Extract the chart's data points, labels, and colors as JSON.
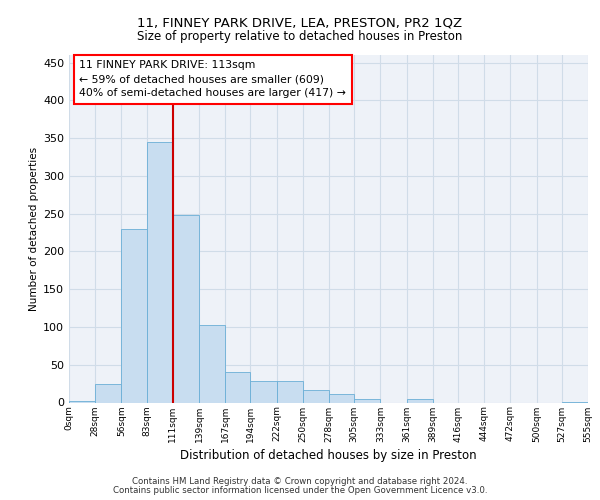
{
  "title1": "11, FINNEY PARK DRIVE, LEA, PRESTON, PR2 1QZ",
  "title2": "Size of property relative to detached houses in Preston",
  "xlabel": "Distribution of detached houses by size in Preston",
  "ylabel": "Number of detached properties",
  "footer1": "Contains HM Land Registry data © Crown copyright and database right 2024.",
  "footer2": "Contains public sector information licensed under the Open Government Licence v3.0.",
  "annotation_line1": "11 FINNEY PARK DRIVE: 113sqm",
  "annotation_line2": "← 59% of detached houses are smaller (609)",
  "annotation_line3": "40% of semi-detached houses are larger (417) →",
  "bin_edges": [
    0,
    28,
    56,
    83,
    111,
    139,
    167,
    194,
    222,
    250,
    278,
    305,
    333,
    361,
    389,
    416,
    444,
    472,
    500,
    527,
    555
  ],
  "bin_labels": [
    "0sqm",
    "28sqm",
    "56sqm",
    "83sqm",
    "111sqm",
    "139sqm",
    "167sqm",
    "194sqm",
    "222sqm",
    "250sqm",
    "278sqm",
    "305sqm",
    "333sqm",
    "361sqm",
    "389sqm",
    "416sqm",
    "444sqm",
    "472sqm",
    "500sqm",
    "527sqm",
    "555sqm"
  ],
  "counts": [
    2,
    24,
    230,
    345,
    248,
    103,
    40,
    29,
    29,
    16,
    11,
    5,
    0,
    4,
    0,
    0,
    0,
    0,
    0,
    1
  ],
  "bar_color": "#c8ddf0",
  "bar_edge_color": "#6aaed6",
  "vline_x": 111,
  "vline_color": "#cc0000",
  "ylim": [
    0,
    460
  ],
  "yticks": [
    0,
    50,
    100,
    150,
    200,
    250,
    300,
    350,
    400,
    450
  ],
  "grid_color": "#d0dce8",
  "background_color": "#eef2f8"
}
